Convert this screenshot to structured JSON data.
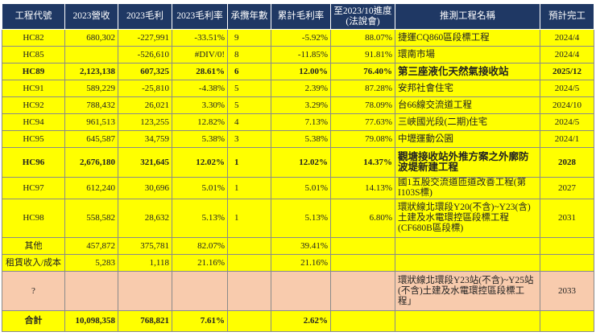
{
  "table": {
    "header": [
      "工程代號",
      "2023營收",
      "2023毛利",
      "2023毛利率",
      "承攬年數",
      "累計毛利率",
      "至2023/10進度 (法說會)",
      "推測工程名稱",
      "預計完工"
    ],
    "rows": [
      [
        "HC82",
        "680,302",
        "-227,991",
        "-33.51%",
        "9",
        "-5.92%",
        "88.07%",
        "捷運CQ860區段標工程",
        "2024/4"
      ],
      [
        "HC85",
        null,
        "-526,610",
        "#DIV/0!",
        "8",
        "-11.85%",
        "91.81%",
        "環南市場",
        "2024/4"
      ],
      [
        "HC89",
        "2,123,138",
        "607,325",
        "28.61%",
        "6",
        "12.00%",
        "76.40%",
        "第三座液化天然氣接收站",
        "2025/12"
      ],
      [
        "HC91",
        "589,229",
        "-25,810",
        "-4.38%",
        "5",
        "2.39%",
        "87.28%",
        "安邦社會住宅",
        "2024/5"
      ],
      [
        "HC92",
        "788,432",
        "26,021",
        "3.30%",
        "5",
        "3.29%",
        "78.09%",
        "台66線交流道工程",
        "2024/10"
      ],
      [
        "HC94",
        "961,513",
        "123,255",
        "12.82%",
        "4",
        "7.13%",
        "77.63%",
        "三峽國光段(二期)住宅",
        "2024/5"
      ],
      [
        "HC95",
        "645,587",
        "34,759",
        "5.38%",
        "3",
        "5.38%",
        "79.08%",
        "中壢運動公園",
        "2024/1"
      ],
      [
        "HC96",
        "2,676,180",
        "321,645",
        "12.02%",
        "1",
        "12.02%",
        "14.37%",
        "觀塘接收站外推方案之外廓防波堤新建工程",
        "2028"
      ],
      [
        "HC97",
        "612,240",
        "30,696",
        "5.01%",
        "1",
        "5.01%",
        "14.13%",
        "國1五股交流道匝道改善工程(第I103S標)",
        "2027"
      ],
      [
        "HC98",
        "558,582",
        "28,632",
        "5.13%",
        "1",
        "5.13%",
        "6.80%",
        "環狀線北環段Y20(不含)~Y23(含)土建及水電環控區段標工程 (CF680B區段標)",
        "2031"
      ],
      [
        "其他",
        "457,872",
        "375,781",
        "82.07%",
        null,
        "39.41%",
        null,
        null,
        null
      ],
      [
        "租賃收入/成本",
        "5,283",
        "1,118",
        "21.16%",
        null,
        "21.16%",
        null,
        null,
        null
      ],
      [
        "?",
        null,
        null,
        null,
        null,
        null,
        null,
        "環狀線北環段Y23站(不含)~Y25站(不含)土建及水電環控區段標工程」",
        "2033"
      ],
      [
        "合計",
        "10,098,358",
        "768,821",
        "7.61%",
        null,
        "2.62%",
        null,
        null,
        null
      ]
    ]
  }
}
